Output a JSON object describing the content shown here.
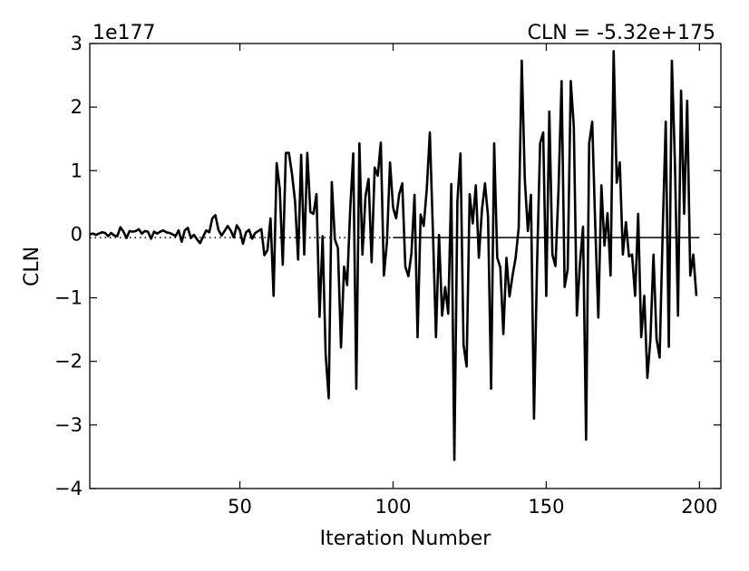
{
  "chart_data": {
    "type": "line",
    "title": "",
    "xlabel": "Iteration Number",
    "ylabel": "CLN",
    "offset_text": "1e177",
    "annotation": "CLN = -5.32e+175",
    "reference_value": -0.0532,
    "xlim": [
      1,
      207
    ],
    "ylim": [
      -4,
      3
    ],
    "x_ticks": [
      50,
      100,
      150,
      200
    ],
    "x_tick_labels": [
      "50",
      "100",
      "150",
      "200"
    ],
    "y_ticks": [
      -4,
      -3,
      -2,
      -1,
      0,
      1,
      2,
      3
    ],
    "y_tick_labels": [
      "−4",
      "−3",
      "−2",
      "−1",
      "0",
      "1",
      "2",
      "3"
    ],
    "grid": false,
    "x_start": 1,
    "y_unit_note": "values in units of 1e177",
    "series": [
      {
        "color": "#000000",
        "values": [
          0.0,
          0.01,
          -0.01,
          0.01,
          0.03,
          0.02,
          -0.03,
          0.02,
          -0.02,
          -0.03,
          0.11,
          0.04,
          -0.06,
          0.05,
          0.04,
          0.05,
          0.08,
          0.01,
          0.05,
          0.04,
          -0.07,
          0.04,
          0.01,
          0.04,
          0.06,
          0.03,
          0.02,
          0.0,
          -0.03,
          0.06,
          -0.12,
          0.06,
          0.1,
          -0.06,
          -0.01,
          -0.08,
          -0.14,
          -0.04,
          0.06,
          0.03,
          0.25,
          0.3,
          0.07,
          -0.02,
          0.05,
          0.13,
          0.06,
          -0.05,
          0.14,
          0.06,
          -0.15,
          0.03,
          0.07,
          -0.07,
          0.02,
          0.05,
          0.08,
          -0.33,
          -0.25,
          0.25,
          -0.97,
          1.12,
          0.72,
          -0.48,
          1.28,
          1.28,
          0.95,
          0.52,
          -0.4,
          1.25,
          -0.32,
          1.28,
          0.35,
          0.32,
          0.63,
          -1.3,
          -0.03,
          -1.9,
          -2.58,
          0.82,
          -0.08,
          -0.22,
          -1.78,
          -0.51,
          -0.8,
          0.38,
          1.27,
          -2.43,
          1.43,
          -0.32,
          0.6,
          0.87,
          -0.44,
          1.05,
          0.92,
          1.44,
          -0.65,
          -0.12,
          1.13,
          0.42,
          0.25,
          0.63,
          0.8,
          -0.51,
          -0.66,
          -0.3,
          0.62,
          -1.62,
          0.31,
          0.13,
          0.71,
          1.6,
          0.05,
          -1.62,
          -0.01,
          -1.28,
          -0.83,
          -1.25,
          0.79,
          -3.55,
          0.52,
          1.27,
          -1.74,
          -2.08,
          0.63,
          0.17,
          0.77,
          -0.37,
          0.38,
          0.8,
          0.28,
          -2.43,
          1.43,
          -0.37,
          -0.52,
          -1.57,
          -0.37,
          -0.98,
          -0.65,
          -0.37,
          0.1,
          2.73,
          0.86,
          0.05,
          0.62,
          -2.9,
          -0.47,
          1.43,
          1.6,
          -0.97,
          1.93,
          -0.32,
          -0.5,
          0.7,
          2.41,
          -0.83,
          -0.55,
          2.41,
          1.68,
          -1.28,
          -0.46,
          0.12,
          -3.23,
          1.43,
          1.77,
          0.12,
          -1.31,
          0.77,
          -0.18,
          0.33,
          -0.65,
          2.88,
          0.81,
          1.13,
          -0.32,
          0.19,
          -0.35,
          -0.32,
          -0.97,
          0.32,
          -1.62,
          -0.97,
          -2.26,
          -1.65,
          -0.32,
          -1.65,
          -1.94,
          0.03,
          1.77,
          -1.77,
          2.73,
          1.12,
          -1.28,
          2.26,
          0.32,
          2.1,
          -0.65,
          -0.32,
          -0.97
        ]
      }
    ]
  }
}
